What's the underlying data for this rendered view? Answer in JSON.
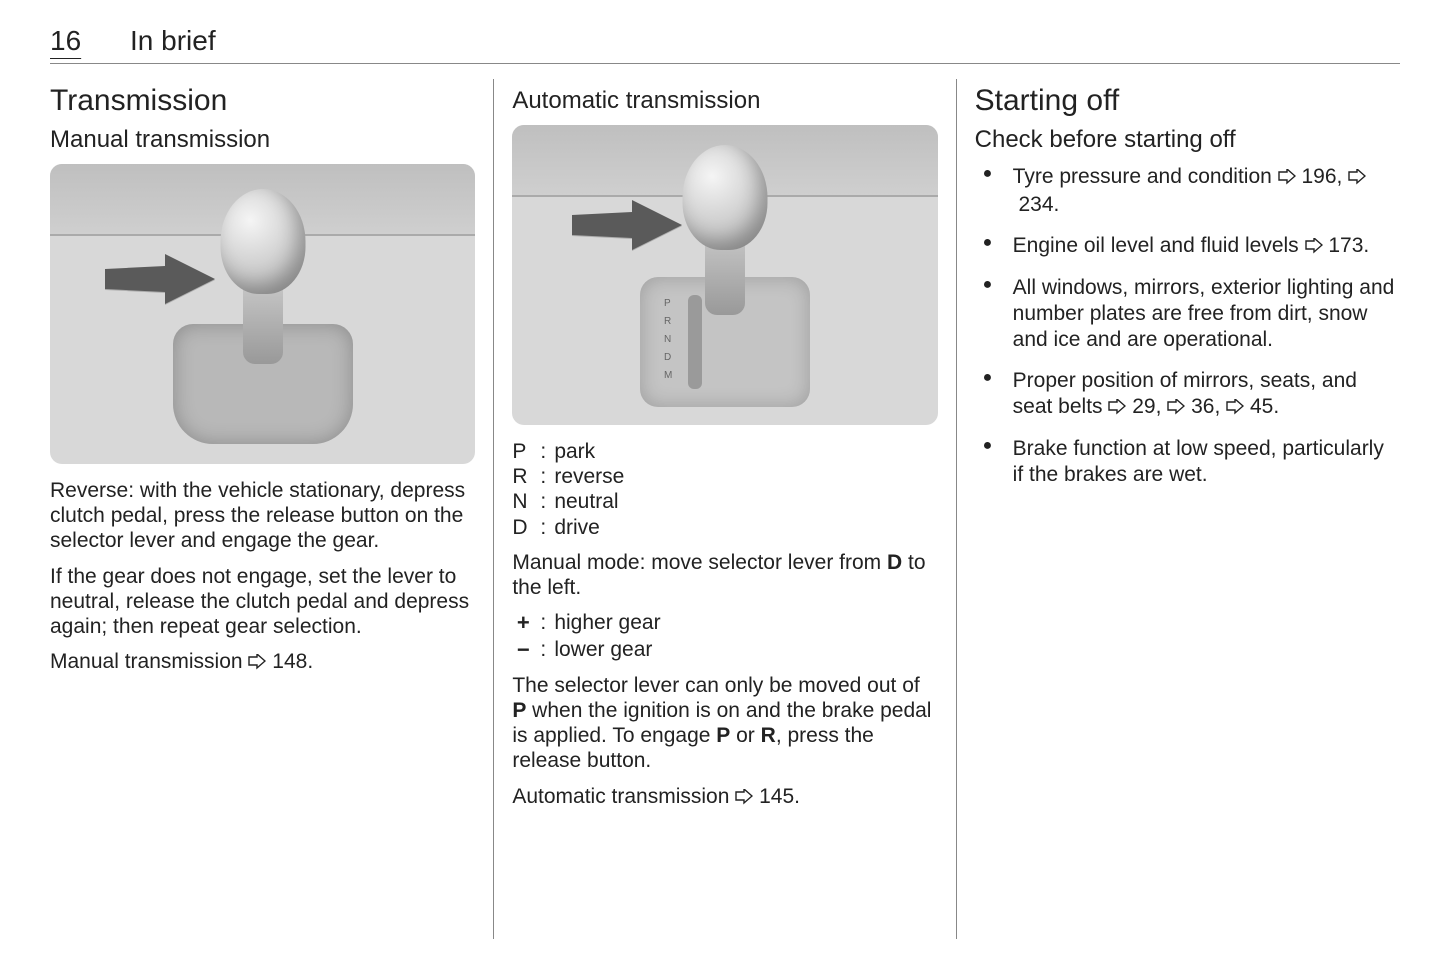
{
  "page_number": "16",
  "section": "In brief",
  "colors": {
    "text": "#222222",
    "rule": "#888888",
    "image_bg": "#d8d8d8"
  },
  "fontsize": {
    "h1": 30,
    "h2": 24,
    "body": 21,
    "pagenum": 28
  },
  "ref_symbol": "⇨",
  "col1": {
    "h1": "Transmission",
    "h2": "Manual transmission",
    "image_alt": "manual gear lever illustration",
    "p1": "Reverse: with the vehicle stationary, depress clutch pedal, press the release button on the selector lever and engage the gear.",
    "p2": "If the gear does not engage, set the lever to neutral, release the clutch pedal and depress again; then repeat gear selection.",
    "ref_label": "Manual transmission",
    "ref_page": "148"
  },
  "col2": {
    "h2": "Automatic transmission",
    "image_alt": "automatic gear selector illustration",
    "positions": [
      {
        "key": "P",
        "label": "park"
      },
      {
        "key": "R",
        "label": "reverse"
      },
      {
        "key": "N",
        "label": "neutral"
      },
      {
        "key": "D",
        "label": "drive"
      }
    ],
    "manual_mode_text": "Manual mode: move selector lever from D to the left.",
    "manual_mode_bold": "D",
    "manual_shift": [
      {
        "sym": "+",
        "label": "higher gear"
      },
      {
        "sym": "−",
        "label": "lower gear"
      }
    ],
    "note_pre": "The selector lever can only be moved out of ",
    "note_bold1": "P",
    "note_mid": " when the ignition is on and the brake pedal is applied. To engage ",
    "note_bold2": "P",
    "note_or": " or ",
    "note_bold3": "R",
    "note_post": ", press the release button.",
    "ref_label": "Automatic transmission",
    "ref_page": "145"
  },
  "col3": {
    "h1": "Starting off",
    "h2": "Check before starting off",
    "items": [
      {
        "text": "Tyre pressure and condition ",
        "refs": [
          "196",
          "234"
        ]
      },
      {
        "text": "Engine oil level and fluid levels ",
        "refs": [
          "173"
        ]
      },
      {
        "text": "All windows, mirrors, exterior lighting and number plates are free from dirt, snow and ice and are operational.",
        "refs": []
      },
      {
        "text": "Proper position of mirrors, seats, and seat belts ",
        "refs": [
          "29",
          "36",
          "45"
        ]
      },
      {
        "text": "Brake function at low speed, particularly if the brakes are wet.",
        "refs": []
      }
    ]
  }
}
